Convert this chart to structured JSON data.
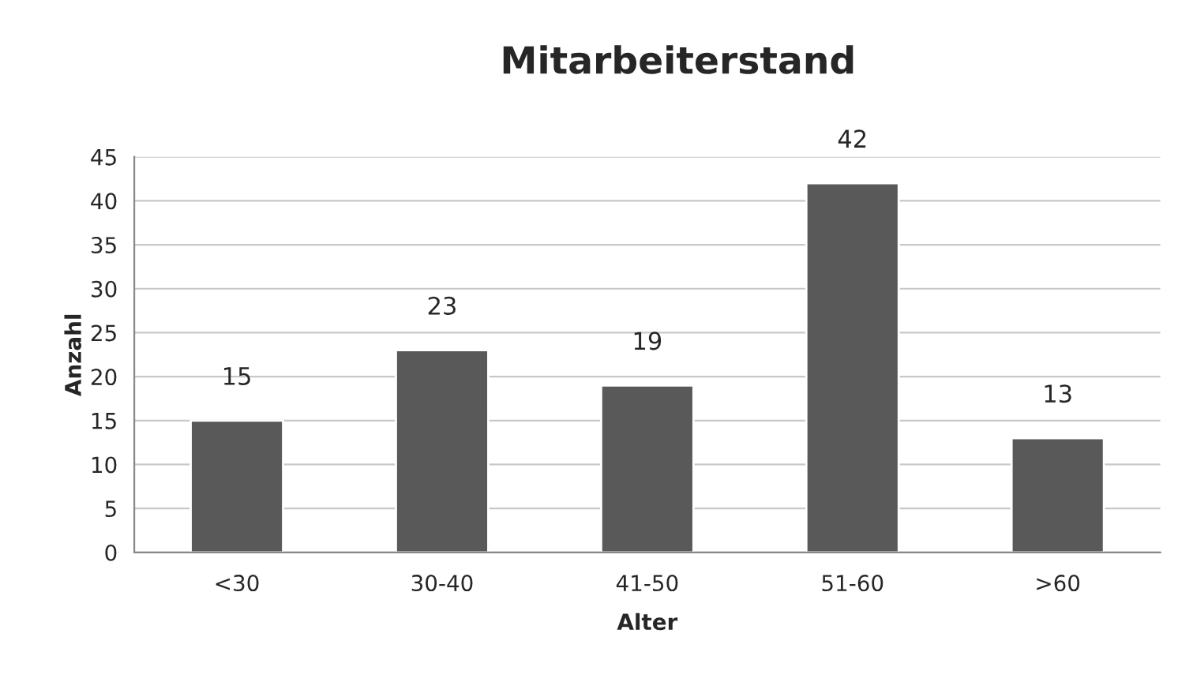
{
  "chart_data": {
    "type": "bar",
    "title": "Mitarbeiterstand",
    "xlabel": "Alter",
    "ylabel": "Anzahl",
    "categories": [
      "<30",
      "30-40",
      "41-50",
      "51-60",
      ">60"
    ],
    "values": [
      15,
      23,
      19,
      42,
      13
    ],
    "color": "#595959",
    "ylim": [
      0,
      45
    ],
    "yticks": [
      0,
      5,
      10,
      15,
      20,
      25,
      30,
      35,
      40,
      45
    ],
    "grid": "y",
    "data_labels": true,
    "legend": false
  }
}
